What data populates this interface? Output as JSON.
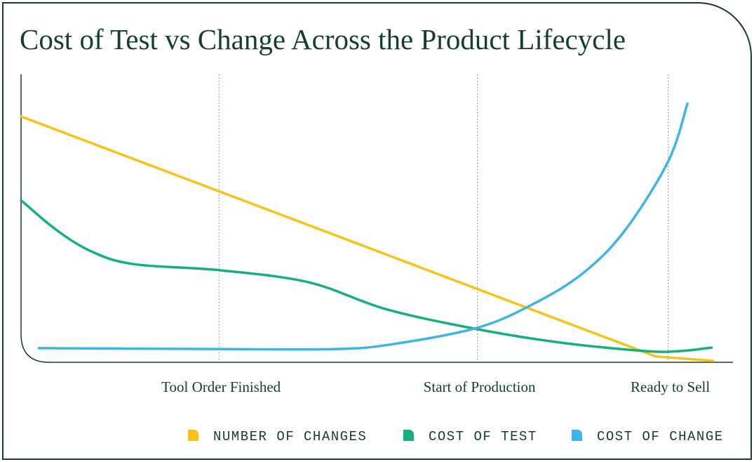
{
  "chart_data": {
    "type": "line",
    "title": "Cost of Test vs Change Across the Product Lifecycle",
    "xlim": [
      0,
      100
    ],
    "ylim": [
      0,
      100
    ],
    "xticks": [
      {
        "value": 27.8,
        "label": "Tool Order Finished"
      },
      {
        "value": 64.1,
        "label": "Start of Production"
      },
      {
        "value": 90.9,
        "label": "Ready to Sell"
      }
    ],
    "grid": true,
    "series": [
      {
        "name": "NUMBER OF CHANGES",
        "color": "#f7c21a",
        "x": [
          0,
          89.2,
          97.2
        ],
        "values": [
          85.4,
          2.0,
          0.5
        ]
      },
      {
        "name": "COST OF TEST",
        "color": "#16b07d",
        "x": [
          0,
          4.9,
          9.9,
          15.8,
          27.8,
          40.4,
          51.2,
          64.1,
          75.9,
          87.7,
          92.6,
          97.0
        ],
        "values": [
          56.3,
          46.1,
          38.5,
          34.1,
          32.0,
          27.8,
          18.5,
          11.5,
          6.8,
          3.9,
          3.9,
          5.1
        ]
      },
      {
        "name": "COST OF CHANGE",
        "color": "#41b4e6",
        "x": [
          2.5,
          27.8,
          44.3,
          52.2,
          64.1,
          71.9,
          78.8,
          84.7,
          90.9,
          93.6
        ],
        "values": [
          4.9,
          4.6,
          4.6,
          6.3,
          12.0,
          20.2,
          30.7,
          45.4,
          69.8,
          89.8
        ]
      }
    ]
  }
}
